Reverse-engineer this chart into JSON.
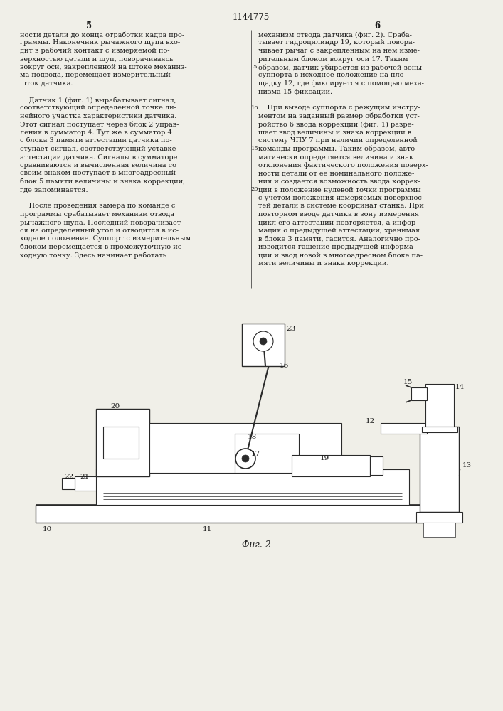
{
  "patent_number": "1144775",
  "page_numbers": [
    "5",
    "6"
  ],
  "background_color": "#f0efe8",
  "text_color": "#1a1a1a",
  "line_color": "#2a2a2a",
  "col1_text": [
    "ности детали до конца отработки кадра про-",
    "граммы. Наконечник рычажного щупа вхо-",
    "дит в рабочий контакт с измеряемой по-",
    "верхностью детали и щуп, поворачиваясь",
    "вокруг оси, закрепленной на штоке механиз-",
    "ма подвода, перемещает измерительный",
    "шток датчика.",
    "",
    "    Датчик 1 (фиг. 1) вырабатывает сигнал,",
    "соответствующий определенной точке ли-",
    "нейного участка характеристики датчика.",
    "Этот сигнал поступает через блок 2 управ-",
    "ления в сумматор 4. Тут же в сумматор 4",
    "с блока 3 памяти аттестации датчика по-",
    "ступает сигнал, соответствующий уставке",
    "аттестации датчика. Сигналы в сумматоре",
    "сравниваются и вычисленная величина со",
    "своим знаком поступает в многоадресный",
    "блок 5 памяти величины и знака коррекции,",
    "где запоминается.",
    "",
    "    После проведения замера по команде с",
    "программы срабатывает механизм отвода",
    "рычажного щупа. Последний поворачивает-",
    "ся на определенный угол и отводится в ис-",
    "ходное положение. Суппорт с измерительным",
    "блоком перемещается в промежуточную ис-",
    "ходную точку. Здесь начинает работать"
  ],
  "col2_text": [
    "механизм отвода датчика (фиг. 2). Сраба-",
    "тывает гидроцилиндр 19, который поворa-",
    "чивает рычаг с закрепленным на нем изме-",
    "рительным блоком вокруг оси 17. Таким",
    "образом, датчик убирается из рабочей зоны",
    "суппорта в исходное положение на пло-",
    "щадку 12, где фиксируется с помощью меха-",
    "низма 15 фиксации.",
    "",
    "    При выводе суппорта с режущим инстру-",
    "ментом на заданный размер обработки уст-",
    "ройство 6 ввода коррекции (фиг. 1) разре-",
    "шает ввод величины и знака коррекции в",
    "систему ЧПУ 7 при наличии определенной",
    "команды программы. Таким образом, авто-",
    "матически определяется величина и знак",
    "отклонения фактического положения поверх-",
    "ности детали от ее номинального положе-",
    "ния и создается возможность ввода коррек-",
    "ции в положение нулевой точки программы",
    "с учетом положения измеряемых поверхнос-",
    "тей детали в системе координат станка. При",
    "повторном вводе датчика в зону измерения",
    "цикл его аттестации повторяется, а инфор-",
    "мация о предыдущей аттестации, хранимая",
    "в блоке 3 памяти, гасится. Аналогично про-",
    "изводится гашение предыдущей информа-",
    "ции и ввод новой в многоадресном блоке па-",
    "мяти величины и знака коррекции."
  ],
  "line_numbers_col2": [
    5,
    10,
    15,
    20
  ],
  "line_num_row_indices": [
    4,
    9,
    14,
    19
  ],
  "fig_caption": "Фиг. 2"
}
